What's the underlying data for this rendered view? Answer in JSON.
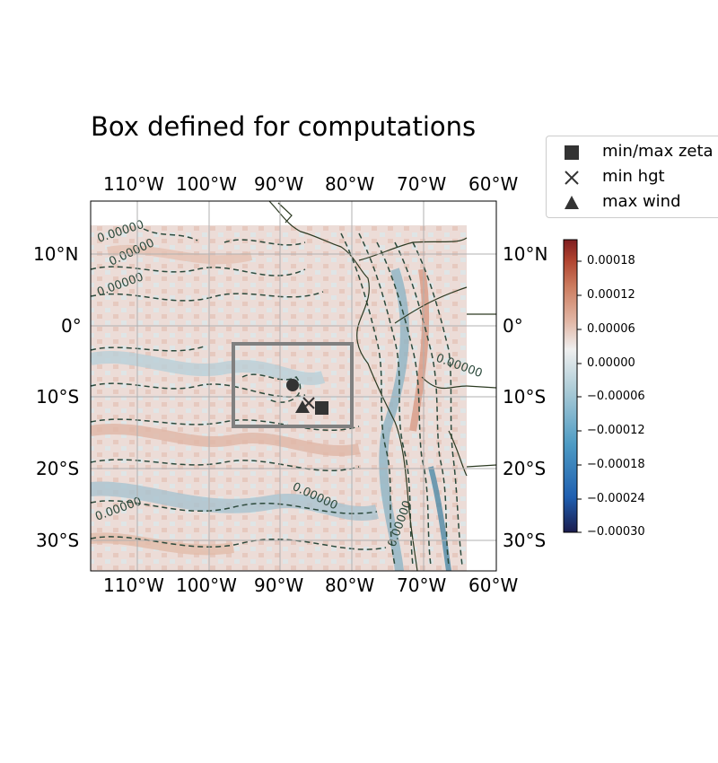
{
  "title": "Box defined for computations",
  "map": {
    "lon_ticks": [
      "110°W",
      "100°W",
      "90°W",
      "80°W",
      "70°W",
      "60°W"
    ],
    "lat_ticks": [
      "10°N",
      "0°",
      "10°S",
      "20°S",
      "30°S"
    ],
    "contour_label": "0.00000",
    "gridlines": true
  },
  "legend": {
    "items": [
      {
        "label": "min/max zeta",
        "marker": "square"
      },
      {
        "label": "min hgt",
        "marker": "x"
      },
      {
        "label": "max wind",
        "marker": "triangle"
      }
    ]
  },
  "colorbar": {
    "ticks": [
      "0.00018",
      "0.00012",
      "0.00006",
      "0.00000",
      "−0.00006",
      "−0.00012",
      "−0.00018",
      "−0.00024",
      "−0.00030"
    ],
    "colors": [
      "#1b1c4d",
      "#1f5fb0",
      "#4d9bc4",
      "#a9cad6",
      "#efefef",
      "#e2b7a6",
      "#cc7c5f",
      "#b0432f",
      "#7f1d20"
    ]
  },
  "colors": {
    "contour": "#2c4a3c",
    "coast": "#2c3a22",
    "box": "#808080",
    "marker": "#333333"
  }
}
